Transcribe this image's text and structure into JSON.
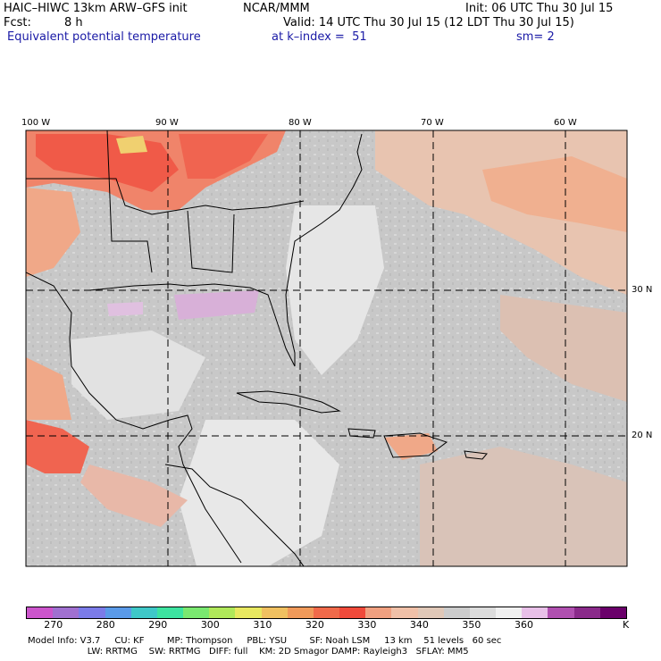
{
  "header": {
    "model": "HAIC–HIWC 13km ARW–GFS init",
    "org": "NCAR/MMM",
    "init": "Init: 06 UTC Thu 30 Jul 15",
    "fcst_label": "Fcst:",
    "fcst_value": "8 h",
    "valid": "Valid: 14 UTC Thu 30 Jul 15 (12 LDT Thu 30 Jul 15)",
    "field": "Equivalent potential temperature",
    "level": "at k–index =  51",
    "smooth": "sm= 2"
  },
  "map": {
    "lon_labels": [
      "100 W",
      "90 W",
      "80 W",
      "70 W",
      "60 W"
    ],
    "lat_labels": [
      "30 N",
      "20 N"
    ]
  },
  "colorbar": {
    "colors": [
      "#cc55cc",
      "#a070d0",
      "#7b7be8",
      "#5a9ae8",
      "#3fc8c8",
      "#3de3a0",
      "#7ae870",
      "#b0e85a",
      "#e8e860",
      "#f0c060",
      "#f09a5a",
      "#f06a4a",
      "#f04a3a",
      "#f0a080",
      "#f0c0a8",
      "#e0c8b8",
      "#cccccc",
      "#dcdcdc",
      "#f0f0f0",
      "#e8c0e8",
      "#b050b0",
      "#8a2a8a",
      "#6a006a"
    ],
    "ticks": [
      "270",
      "280",
      "290",
      "300",
      "310",
      "320",
      "330",
      "340",
      "350",
      "360"
    ],
    "unit": "K"
  },
  "footer": {
    "line1": "Model Info: V3.7     CU: KF        MP: Thompson     PBL: YSU        SF: Noah LSM     13 km    51 levels   60 sec",
    "line2": "                     LW: RRTMG    SW: RRTMG   DIFF: full    KM: 2D Smagor DAMP: Rayleigh3   SFLAY: MM5"
  }
}
